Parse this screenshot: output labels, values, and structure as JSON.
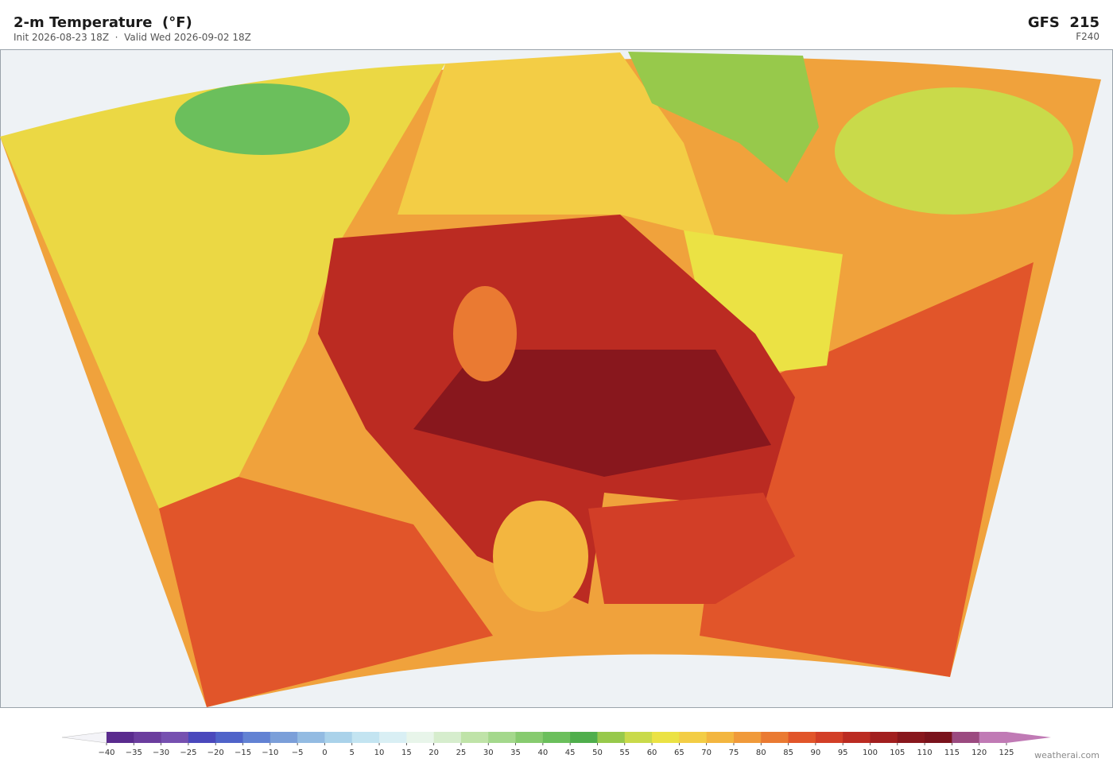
{
  "header": {
    "title": "2-m Temperature  (°F)",
    "subtitle": "Init 2026-08-23 18Z  ·  Valid Wed 2026-09-02 18Z",
    "model": "GFS  215",
    "forecast_hour": "F240"
  },
  "colorbar": {
    "ticks": [
      {
        "value": -40,
        "label": "−40"
      },
      {
        "value": -35,
        "label": "−35"
      },
      {
        "value": -30,
        "label": "−30"
      },
      {
        "value": -25,
        "label": "−25"
      },
      {
        "value": -20,
        "label": "−20"
      },
      {
        "value": -15,
        "label": "−15"
      },
      {
        "value": -10,
        "label": "−10"
      },
      {
        "value": -5,
        "label": "−5"
      },
      0,
      5,
      10,
      15,
      20,
      25,
      30,
      35,
      40,
      45,
      50,
      55,
      60,
      65,
      70,
      75,
      80,
      85,
      90,
      95,
      100,
      105,
      110,
      115,
      120,
      125
    ],
    "colors": [
      "#5a2b8e",
      "#6b3d9e",
      "#7650b0",
      "#4a48bc",
      "#4f63c9",
      "#6282d3",
      "#7b9fd9",
      "#93bbe2",
      "#aad2ea",
      "#c3e4f1",
      "#d9eff4",
      "#e8f5ea",
      "#d6edcd",
      "#bfe3a8",
      "#a4d88c",
      "#87cb6f",
      "#6bbf5c",
      "#4fae4c",
      "#97c94b",
      "#c9da4a",
      "#ebe244",
      "#f3cd45",
      "#f3b63f",
      "#f09a3a",
      "#ea7a32",
      "#e1552a",
      "#d23e27",
      "#bb2b22",
      "#a21f1f",
      "#88171d",
      "#7a131c",
      "#9b4a80",
      "#c07ab5"
    ]
  },
  "footer": {
    "credit": "weatherai.com"
  }
}
